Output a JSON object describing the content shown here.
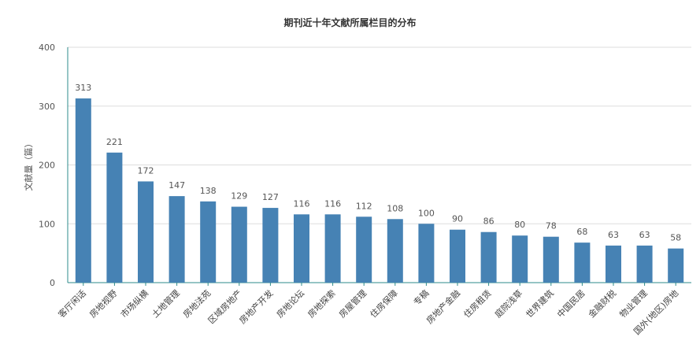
{
  "chart_data": {
    "type": "bar",
    "title": "期刊近十年文献所属栏目的分布",
    "xlabel": "",
    "ylabel": "文献量（篇）",
    "ylim": [
      0,
      400
    ],
    "yticks": [
      0,
      100,
      200,
      300,
      400
    ],
    "grid": true,
    "categories": [
      "客厅闲话",
      "房地视野",
      "市场纵横",
      "土地管理",
      "房地法苑",
      "区域房地产",
      "房地产开发",
      "房地论坛",
      "房地探索",
      "房屋管理",
      "住房保障",
      "专稿",
      "房地产金融",
      "住房租赁",
      "庭院浅草",
      "世界建筑",
      "中国民居",
      "金融财税",
      "物业管理",
      "国外(地区)房地"
    ],
    "values": [
      313,
      221,
      172,
      147,
      138,
      129,
      127,
      116,
      116,
      112,
      108,
      100,
      90,
      86,
      80,
      78,
      68,
      63,
      63,
      58
    ]
  },
  "colors": {
    "bar": "#4682b4",
    "axis": "#2e8b8b",
    "grid": "#dddddd"
  }
}
